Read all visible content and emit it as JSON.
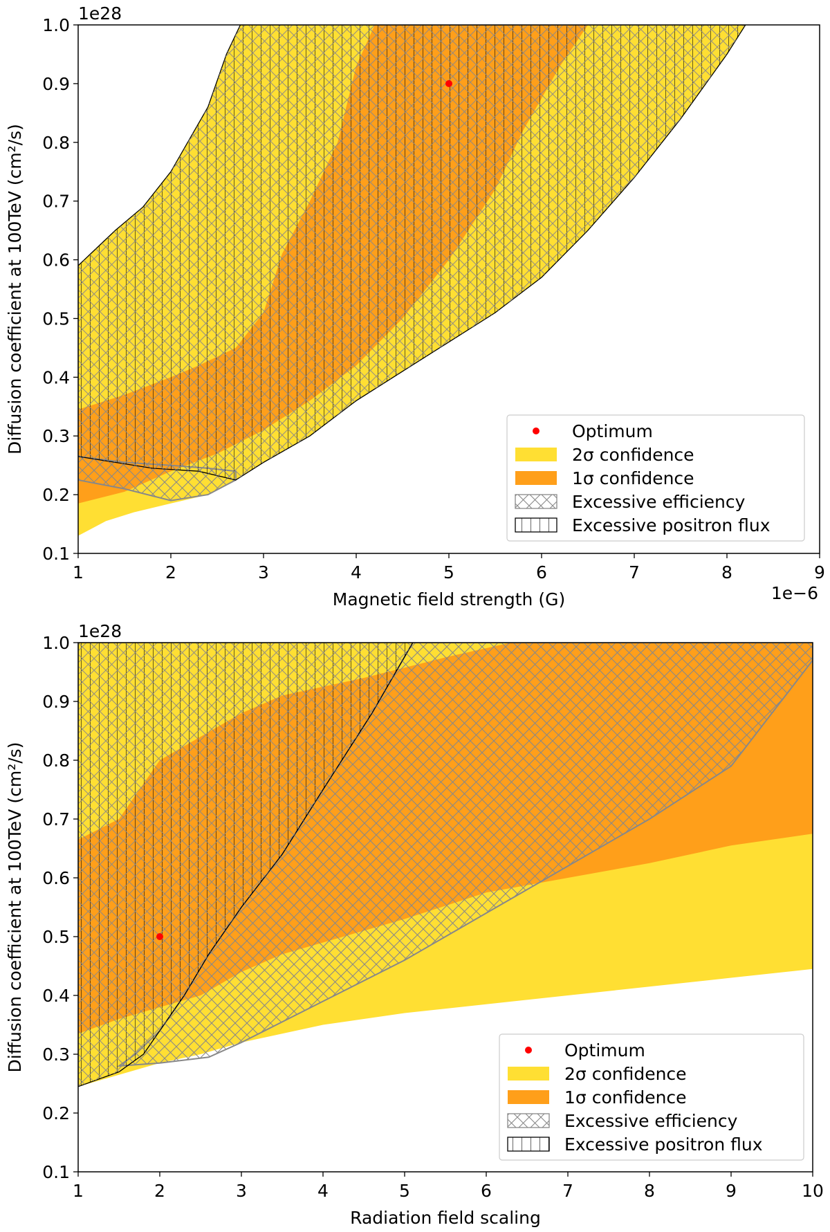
{
  "chart_data": [
    {
      "type": "area",
      "xlabel": "Magnetic field strength (G)",
      "ylabel": "Diffusion coefficient at 100TeV (cm²/s)",
      "x_offset_label": "1e−6",
      "y_offset_label": "1e28",
      "xlim": [
        1,
        9
      ],
      "ylim": [
        0.1,
        1.0
      ],
      "x_ticks": [
        "1",
        "2",
        "3",
        "4",
        "5",
        "6",
        "7",
        "8",
        "9"
      ],
      "y_ticks": [
        "0.1",
        "0.2",
        "0.3",
        "0.4",
        "0.5",
        "0.6",
        "0.7",
        "0.8",
        "0.9",
        "1.0"
      ],
      "optimum": {
        "x": 5.0,
        "y": 0.9
      },
      "regions": {
        "sigma2": [
          [
            1.0,
            0.13
          ],
          [
            1.3,
            0.155
          ],
          [
            1.6,
            0.17
          ],
          [
            2.0,
            0.185
          ],
          [
            2.4,
            0.2
          ],
          [
            2.7,
            0.225
          ],
          [
            3.0,
            0.255
          ],
          [
            3.5,
            0.3
          ],
          [
            4.0,
            0.36
          ],
          [
            4.5,
            0.41
          ],
          [
            5.0,
            0.46
          ],
          [
            5.5,
            0.51
          ],
          [
            6.0,
            0.57
          ],
          [
            6.5,
            0.65
          ],
          [
            7.0,
            0.74
          ],
          [
            7.5,
            0.84
          ],
          [
            8.0,
            0.95
          ],
          [
            8.2,
            1.0
          ],
          [
            2.75,
            1.0
          ],
          [
            2.6,
            0.95
          ],
          [
            2.4,
            0.86
          ],
          [
            2.0,
            0.75
          ],
          [
            1.7,
            0.69
          ],
          [
            1.4,
            0.65
          ],
          [
            1.0,
            0.59
          ]
        ],
        "sigma1": [
          [
            1.0,
            0.185
          ],
          [
            1.5,
            0.205
          ],
          [
            2.0,
            0.24
          ],
          [
            2.5,
            0.27
          ],
          [
            3.0,
            0.31
          ],
          [
            3.5,
            0.36
          ],
          [
            4.0,
            0.42
          ],
          [
            4.5,
            0.5
          ],
          [
            5.0,
            0.6
          ],
          [
            5.5,
            0.72
          ],
          [
            5.8,
            0.82
          ],
          [
            6.2,
            0.93
          ],
          [
            6.5,
            1.0
          ],
          [
            4.2,
            1.0
          ],
          [
            4.0,
            0.93
          ],
          [
            3.8,
            0.8
          ],
          [
            3.5,
            0.7
          ],
          [
            3.2,
            0.61
          ],
          [
            3.0,
            0.51
          ],
          [
            2.7,
            0.45
          ],
          [
            2.3,
            0.42
          ],
          [
            2.0,
            0.4
          ],
          [
            1.5,
            0.37
          ],
          [
            1.0,
            0.345
          ]
        ],
        "excessive_efficiency": [
          [
            1.0,
            0.225
          ],
          [
            1.5,
            0.21
          ],
          [
            2.0,
            0.19
          ],
          [
            2.4,
            0.2
          ],
          [
            2.7,
            0.225
          ],
          [
            2.7,
            0.24
          ],
          [
            2.4,
            0.245
          ],
          [
            2.0,
            0.25
          ],
          [
            1.5,
            0.255
          ],
          [
            1.0,
            0.265
          ]
        ],
        "excessive_positron_flux": [
          [
            1.0,
            0.265
          ],
          [
            1.4,
            0.255
          ],
          [
            1.8,
            0.245
          ],
          [
            2.3,
            0.24
          ],
          [
            2.7,
            0.225
          ],
          [
            3.0,
            0.255
          ],
          [
            3.5,
            0.3
          ],
          [
            4.0,
            0.36
          ],
          [
            4.5,
            0.41
          ],
          [
            5.0,
            0.46
          ],
          [
            5.5,
            0.51
          ],
          [
            6.0,
            0.57
          ],
          [
            6.5,
            0.65
          ],
          [
            7.0,
            0.74
          ],
          [
            7.5,
            0.84
          ],
          [
            8.0,
            0.95
          ],
          [
            8.2,
            1.0
          ],
          [
            2.75,
            1.0
          ],
          [
            2.6,
            0.95
          ],
          [
            2.4,
            0.86
          ],
          [
            2.0,
            0.75
          ],
          [
            1.7,
            0.69
          ],
          [
            1.4,
            0.65
          ],
          [
            1.0,
            0.59
          ]
        ]
      },
      "legend": {
        "position": "lower-right",
        "items": [
          {
            "label": "Optimum",
            "kind": "dot"
          },
          {
            "label": "2σ confidence",
            "kind": "sigma2"
          },
          {
            "label": "1σ confidence",
            "kind": "sigma1"
          },
          {
            "label": "Excessive efficiency",
            "kind": "crosshatch"
          },
          {
            "label": "Excessive positron flux",
            "kind": "vhatch"
          }
        ]
      }
    },
    {
      "type": "area",
      "xlabel": "Radiation field scaling",
      "ylabel": "Diffusion coefficient at 100TeV (cm²/s)",
      "y_offset_label": "1e28",
      "xlim": [
        1,
        10
      ],
      "ylim": [
        0.1,
        1.0
      ],
      "x_ticks": [
        "1",
        "2",
        "3",
        "4",
        "5",
        "6",
        "7",
        "8",
        "9",
        "10"
      ],
      "y_ticks": [
        "0.1",
        "0.2",
        "0.3",
        "0.4",
        "0.5",
        "0.6",
        "0.7",
        "0.8",
        "0.9",
        "1.0"
      ],
      "optimum": {
        "x": 2.0,
        "y": 0.5
      },
      "regions": {
        "sigma2": [
          [
            1.0,
            0.245
          ],
          [
            1.5,
            0.265
          ],
          [
            2.0,
            0.285
          ],
          [
            2.5,
            0.3
          ],
          [
            3.0,
            0.32
          ],
          [
            4.0,
            0.35
          ],
          [
            5.0,
            0.37
          ],
          [
            6.0,
            0.385
          ],
          [
            7.0,
            0.4
          ],
          [
            8.0,
            0.415
          ],
          [
            9.0,
            0.43
          ],
          [
            10.0,
            0.445
          ],
          [
            10.0,
            1.0
          ],
          [
            1.0,
            1.0
          ]
        ],
        "sigma1": [
          [
            1.0,
            0.335
          ],
          [
            1.5,
            0.36
          ],
          [
            2.0,
            0.38
          ],
          [
            2.5,
            0.4
          ],
          [
            3.0,
            0.44
          ],
          [
            3.5,
            0.47
          ],
          [
            4.0,
            0.49
          ],
          [
            5.0,
            0.53
          ],
          [
            6.0,
            0.575
          ],
          [
            7.0,
            0.6
          ],
          [
            8.0,
            0.625
          ],
          [
            9.0,
            0.655
          ],
          [
            10.0,
            0.675
          ],
          [
            10.0,
            1.0
          ],
          [
            6.3,
            1.0
          ],
          [
            5.5,
            0.975
          ],
          [
            4.5,
            0.94
          ],
          [
            3.5,
            0.91
          ],
          [
            3.0,
            0.88
          ],
          [
            2.5,
            0.84
          ],
          [
            2.0,
            0.8
          ],
          [
            1.5,
            0.7
          ],
          [
            1.0,
            0.665
          ]
        ],
        "excessive_efficiency": [
          [
            1.5,
            0.28
          ],
          [
            2.0,
            0.285
          ],
          [
            2.6,
            0.295
          ],
          [
            3.0,
            0.32
          ],
          [
            4.0,
            0.39
          ],
          [
            5.0,
            0.46
          ],
          [
            6.0,
            0.54
          ],
          [
            7.0,
            0.62
          ],
          [
            8.0,
            0.7
          ],
          [
            9.0,
            0.79
          ],
          [
            10.0,
            0.97
          ],
          [
            10.0,
            1.0
          ],
          [
            5.1,
            1.0
          ],
          [
            4.6,
            0.88
          ],
          [
            4.0,
            0.75
          ],
          [
            3.5,
            0.64
          ],
          [
            3.0,
            0.55
          ],
          [
            2.6,
            0.47
          ],
          [
            2.3,
            0.4
          ],
          [
            2.0,
            0.34
          ],
          [
            1.7,
            0.3
          ]
        ],
        "excessive_positron_flux": [
          [
            1.0,
            0.245
          ],
          [
            1.5,
            0.27
          ],
          [
            1.8,
            0.3
          ],
          [
            2.0,
            0.34
          ],
          [
            2.3,
            0.4
          ],
          [
            2.6,
            0.47
          ],
          [
            3.0,
            0.55
          ],
          [
            3.5,
            0.64
          ],
          [
            4.0,
            0.75
          ],
          [
            4.6,
            0.88
          ],
          [
            5.1,
            1.0
          ],
          [
            1.0,
            1.0
          ]
        ]
      },
      "legend": {
        "position": "lower-right",
        "items": [
          {
            "label": "Optimum",
            "kind": "dot"
          },
          {
            "label": "2σ confidence",
            "kind": "sigma2"
          },
          {
            "label": "1σ confidence",
            "kind": "sigma1"
          },
          {
            "label": "Excessive efficiency",
            "kind": "crosshatch"
          },
          {
            "label": "Excessive positron flux",
            "kind": "vhatch"
          }
        ]
      }
    }
  ],
  "colors": {
    "sigma2": "#FFDF33",
    "sigma1": "#FF9F1A",
    "crosshatch": "#888888",
    "vhatch": "#000000",
    "optimum": "#FF0000"
  }
}
